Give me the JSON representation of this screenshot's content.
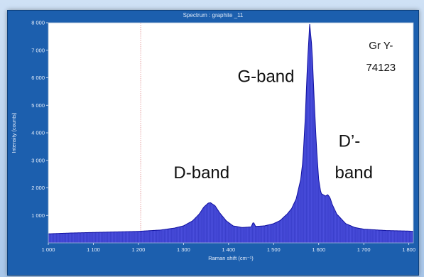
{
  "window": {
    "title": "Spectrum : graphite _11"
  },
  "chart_data": {
    "type": "line",
    "title": "Spectrum : graphite _11",
    "xlabel": "Raman shift (cm⁻¹)",
    "ylabel": "Intensity (counts)",
    "xlim": [
      1000,
      1810
    ],
    "ylim": [
      0,
      8000
    ],
    "x_ticks": [
      1000,
      1100,
      1200,
      1300,
      1400,
      1500,
      1600,
      1700,
      1800
    ],
    "x_tick_labels": [
      "1 000",
      "1 100",
      "1 200",
      "1 300",
      "1 400",
      "1 500",
      "1 600",
      "1 700",
      "1 800"
    ],
    "y_ticks": [
      1000,
      2000,
      3000,
      4000,
      5000,
      6000,
      7000,
      8000
    ],
    "y_tick_labels": [
      "1 000",
      "2 000",
      "3 000",
      "4 000",
      "5 000",
      "6 000",
      "7 000",
      "8 000"
    ],
    "marker_x": 1205,
    "series": [
      {
        "color": "#2a2fd6",
        "x": [
          1000,
          1050,
          1100,
          1150,
          1200,
          1250,
          1280,
          1300,
          1320,
          1335,
          1345,
          1355,
          1360,
          1370,
          1380,
          1395,
          1410,
          1430,
          1450,
          1455,
          1460,
          1480,
          1500,
          1515,
          1520,
          1530,
          1540,
          1550,
          1560,
          1565,
          1570,
          1575,
          1580,
          1585,
          1590,
          1595,
          1600,
          1605,
          1610,
          1615,
          1620,
          1625,
          1630,
          1640,
          1660,
          1680,
          1700,
          1750,
          1800,
          1810
        ],
        "y": [
          330,
          360,
          380,
          400,
          420,
          470,
          540,
          620,
          800,
          1050,
          1300,
          1450,
          1460,
          1350,
          1100,
          800,
          620,
          560,
          580,
          760,
          600,
          620,
          700,
          820,
          900,
          1050,
          1250,
          1600,
          2300,
          3000,
          4500,
          6500,
          7950,
          7100,
          5200,
          3500,
          2300,
          1800,
          1750,
          1700,
          1750,
          1650,
          1400,
          1050,
          700,
          560,
          500,
          450,
          430,
          420
        ]
      }
    ],
    "annotations": [
      {
        "text": "D-band",
        "x": 1340,
        "y": 2350
      },
      {
        "text": "G-band",
        "x": 1483,
        "y": 5850
      },
      {
        "text": "D’-",
        "x": 1668,
        "y": 3500
      },
      {
        "text": "band",
        "x": 1678,
        "y": 2350
      },
      {
        "text": "Gr Y-",
        "x": 1738,
        "y": 7050
      },
      {
        "text": "74123",
        "x": 1738,
        "y": 6250
      }
    ]
  }
}
